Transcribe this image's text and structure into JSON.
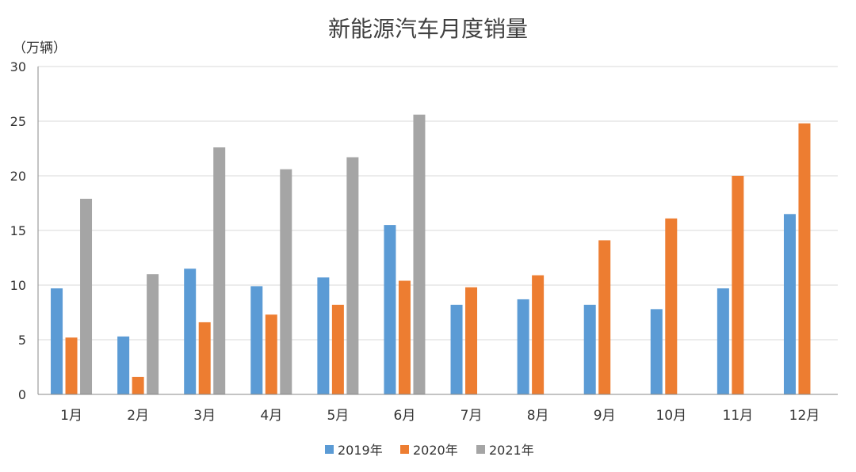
{
  "chart_data": {
    "type": "bar",
    "title": "新能源汽车月度销量",
    "ylabel": "（万辆）",
    "xlabel": "",
    "ylim": [
      0,
      30
    ],
    "yticks": [
      0,
      5,
      10,
      15,
      20,
      25,
      30
    ],
    "grid": true,
    "legend_position": "bottom",
    "categories": [
      "1月",
      "2月",
      "3月",
      "4月",
      "5月",
      "6月",
      "7月",
      "8月",
      "9月",
      "10月",
      "11月",
      "12月"
    ],
    "series": [
      {
        "name": "2019年",
        "color": "#5B9BD5",
        "values": [
          9.7,
          5.3,
          11.5,
          9.9,
          10.7,
          15.5,
          8.2,
          8.7,
          8.2,
          7.8,
          9.7,
          16.5
        ]
      },
      {
        "name": "2020年",
        "color": "#ED7D31",
        "values": [
          5.2,
          1.6,
          6.6,
          7.3,
          8.2,
          10.4,
          9.8,
          10.9,
          14.1,
          16.1,
          20.0,
          24.8
        ]
      },
      {
        "name": "2021年",
        "color": "#A5A5A5",
        "values": [
          17.9,
          11.0,
          22.6,
          20.6,
          21.7,
          25.6,
          null,
          null,
          null,
          null,
          null,
          null
        ]
      }
    ]
  }
}
